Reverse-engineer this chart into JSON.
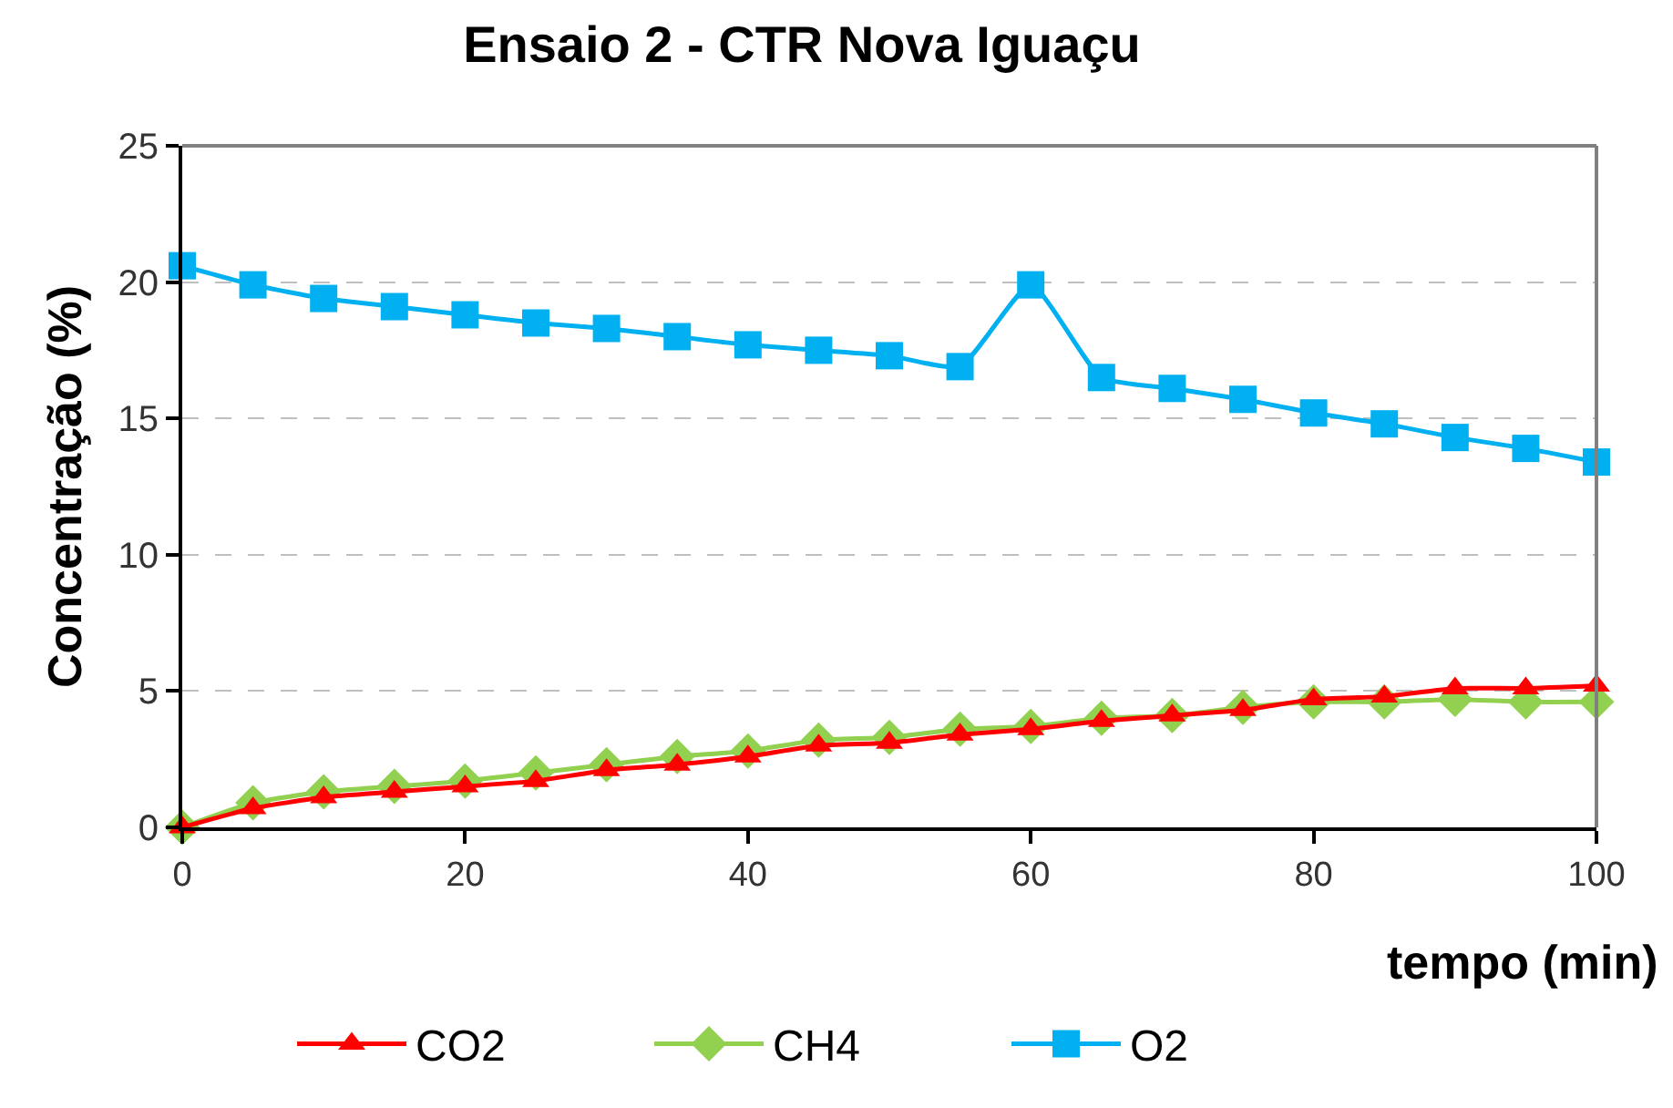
{
  "chart_data": {
    "type": "line",
    "title": "Ensaio 2 - CTR Nova Iguaçu",
    "xlabel": "tempo (min)",
    "ylabel": "Concentração (%)",
    "x": [
      0,
      5,
      10,
      15,
      20,
      25,
      30,
      35,
      40,
      45,
      50,
      55,
      60,
      65,
      70,
      75,
      80,
      85,
      90,
      95,
      100
    ],
    "series": [
      {
        "name": "CO2",
        "color": "#ff0000",
        "marker": "triangle",
        "values": [
          0,
          0.7,
          1.1,
          1.3,
          1.5,
          1.7,
          2.1,
          2.3,
          2.6,
          3.0,
          3.1,
          3.4,
          3.6,
          3.9,
          4.1,
          4.3,
          4.7,
          4.8,
          5.1,
          5.1,
          5.2
        ]
      },
      {
        "name": "CH4",
        "color": "#92d050",
        "marker": "diamond",
        "values": [
          0,
          0.9,
          1.3,
          1.5,
          1.7,
          2.0,
          2.3,
          2.6,
          2.8,
          3.2,
          3.3,
          3.6,
          3.7,
          4.0,
          4.1,
          4.4,
          4.6,
          4.6,
          4.7,
          4.6,
          4.6
        ]
      },
      {
        "name": "O2",
        "color": "#00b0f0",
        "marker": "square",
        "values": [
          20.6,
          19.9,
          19.4,
          19.1,
          18.8,
          18.5,
          18.3,
          18.0,
          17.7,
          17.5,
          17.3,
          16.9,
          19.9,
          16.5,
          16.1,
          15.7,
          15.2,
          14.8,
          14.3,
          13.9,
          13.4
        ]
      }
    ],
    "xlim": [
      0,
      100
    ],
    "xticks": [
      0,
      20,
      40,
      60,
      80,
      100
    ],
    "ylim": [
      0,
      25
    ],
    "yticks": [
      0,
      5,
      10,
      15,
      20,
      25
    ],
    "grid": "y",
    "legend": "bottom",
    "line_style": "solid"
  }
}
